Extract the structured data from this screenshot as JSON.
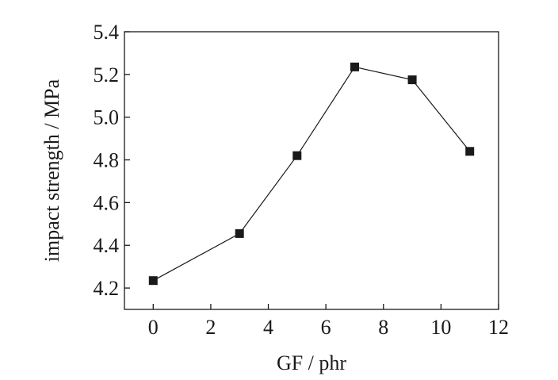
{
  "chart_data": {
    "type": "line",
    "title": "",
    "xlabel": "GF / phr",
    "ylabel": "impact strength / MPa",
    "xlim": [
      -1,
      12
    ],
    "ylim": [
      4.1,
      5.4
    ],
    "xticks": [
      0,
      2,
      4,
      6,
      8,
      10,
      12
    ],
    "yticks": [
      4.2,
      4.4,
      4.6,
      4.8,
      5.0,
      5.2,
      5.4
    ],
    "xtick_labels": [
      "0",
      "2",
      "4",
      "6",
      "8",
      "10",
      "12"
    ],
    "ytick_labels": [
      "4.2",
      "4.4",
      "4.6",
      "4.8",
      "5.0",
      "5.2",
      "5.4"
    ],
    "grid": false,
    "legend": "none",
    "series": [
      {
        "x": [
          0,
          3,
          5,
          7,
          9,
          11
        ],
        "y": [
          4.235,
          4.455,
          4.82,
          5.235,
          5.175,
          4.84
        ],
        "marker": "square",
        "color": "#1a1a1a"
      }
    ]
  }
}
